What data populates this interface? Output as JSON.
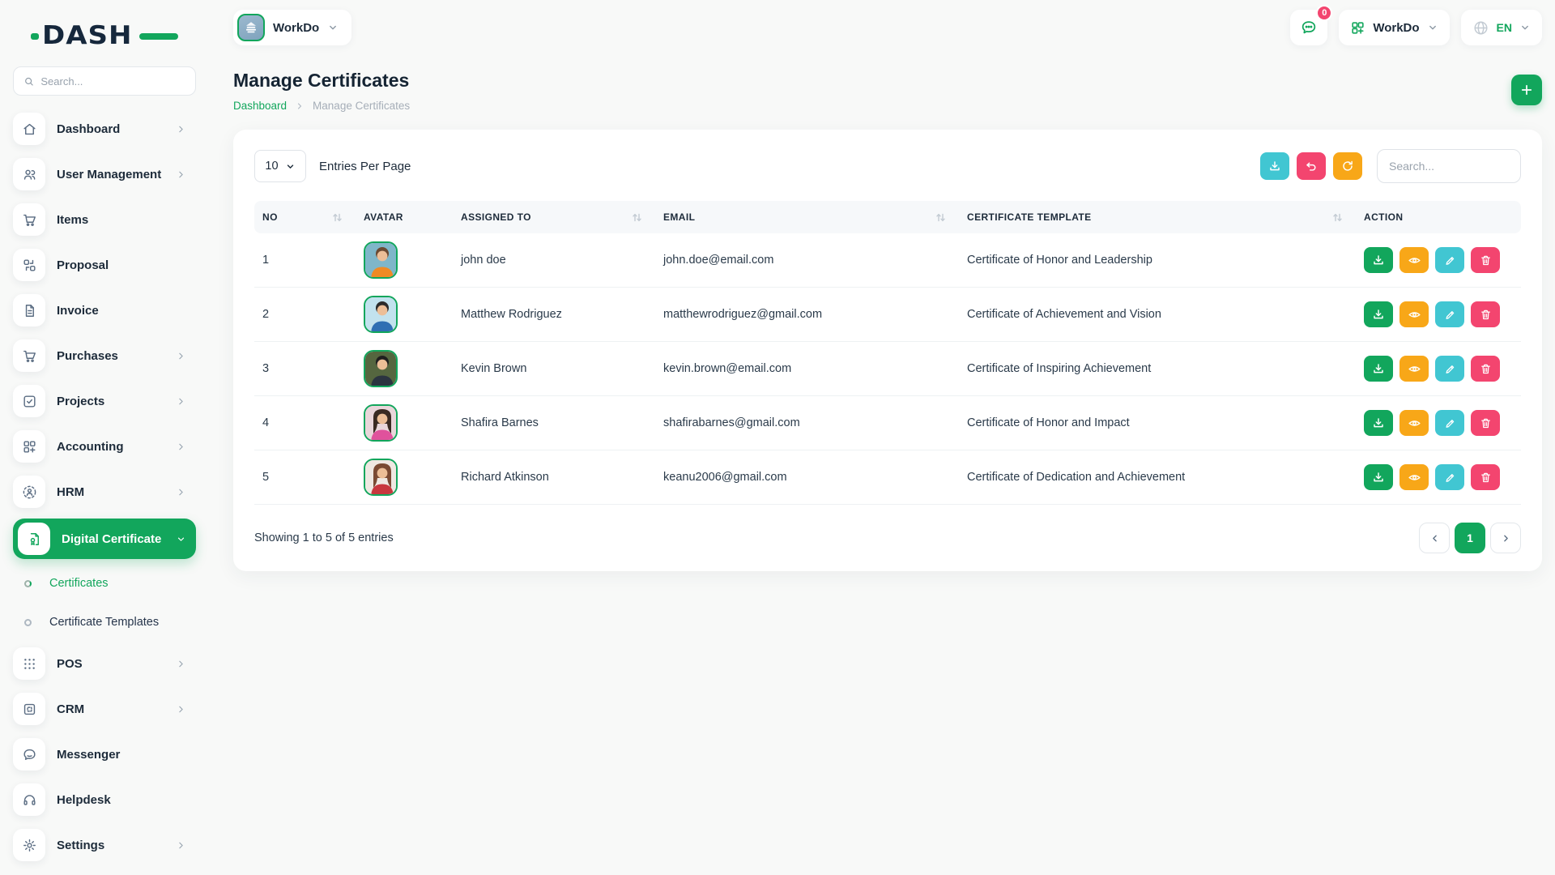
{
  "brand": {
    "logo_text": "DASH"
  },
  "colors": {
    "primary_green": "#12A65C",
    "teal": "#41C6D2",
    "pink": "#F3456F",
    "orange": "#F8A718",
    "badge_red": "#F3456F",
    "dark_text": "#1D2B3A"
  },
  "sidebar": {
    "search_placeholder": "Search...",
    "items": [
      {
        "type": "item",
        "label": "Dashboard",
        "icon": "home",
        "chevron": "right",
        "active": false
      },
      {
        "type": "item",
        "label": "User Management",
        "icon": "users",
        "chevron": "right",
        "active": false
      },
      {
        "type": "item",
        "label": "Items",
        "icon": "cart",
        "chevron": null,
        "active": false
      },
      {
        "type": "item",
        "label": "Proposal",
        "icon": "swap",
        "chevron": null,
        "active": false
      },
      {
        "type": "item",
        "label": "Invoice",
        "icon": "file",
        "chevron": null,
        "active": false
      },
      {
        "type": "item",
        "label": "Purchases",
        "icon": "cart",
        "chevron": "right",
        "active": false
      },
      {
        "type": "item",
        "label": "Projects",
        "icon": "check-square",
        "chevron": "right",
        "active": false
      },
      {
        "type": "item",
        "label": "Accounting",
        "icon": "grid-plus",
        "chevron": "right",
        "active": false
      },
      {
        "type": "item",
        "label": "HRM",
        "icon": "person-dashed",
        "chevron": "right",
        "active": false
      },
      {
        "type": "item",
        "label": "Digital Certificate",
        "icon": "certificate",
        "chevron": "down",
        "active": true
      },
      {
        "type": "sub",
        "label": "Certificates",
        "active": true
      },
      {
        "type": "sub",
        "label": "Certificate Templates",
        "active": false
      },
      {
        "type": "item",
        "label": "POS",
        "icon": "dots-grid",
        "chevron": "right",
        "active": false
      },
      {
        "type": "item",
        "label": "CRM",
        "icon": "window",
        "chevron": "right",
        "active": false
      },
      {
        "type": "item",
        "label": "Messenger",
        "icon": "chat",
        "chevron": null,
        "active": false
      },
      {
        "type": "item",
        "label": "Helpdesk",
        "icon": "headset",
        "chevron": null,
        "active": false
      },
      {
        "type": "item",
        "label": "Settings",
        "icon": "gear",
        "chevron": "right",
        "active": false
      }
    ]
  },
  "header": {
    "company_name": "WorkDo",
    "notification_count": "0",
    "workspace_name": "WorkDo",
    "language": "EN"
  },
  "page": {
    "title": "Manage Certificates",
    "breadcrumb_home": "Dashboard",
    "breadcrumb_current": "Manage Certificates"
  },
  "toolbar": {
    "entries_value": "10",
    "entries_label": "Entries Per Page",
    "search_placeholder": "Search...",
    "buttons": [
      {
        "name": "export",
        "icon": "download",
        "color": "#41C6D2"
      },
      {
        "name": "undo",
        "icon": "undo",
        "color": "#F3456F"
      },
      {
        "name": "refresh",
        "icon": "refresh",
        "color": "#F8A718"
      }
    ]
  },
  "table": {
    "columns": [
      {
        "label": "NO",
        "sortable": true
      },
      {
        "label": "AVATAR",
        "sortable": false
      },
      {
        "label": "ASSIGNED TO",
        "sortable": true
      },
      {
        "label": "EMAIL",
        "sortable": true
      },
      {
        "label": "CERTIFICATE TEMPLATE",
        "sortable": true
      },
      {
        "label": "ACTION",
        "sortable": false
      }
    ],
    "row_actions": [
      {
        "name": "download",
        "icon": "download",
        "color": "#12A65C"
      },
      {
        "name": "view",
        "icon": "eye",
        "color": "#F8A718"
      },
      {
        "name": "edit",
        "icon": "pencil",
        "color": "#41C6D2"
      },
      {
        "name": "delete",
        "icon": "trash",
        "color": "#F3456F"
      }
    ],
    "rows": [
      {
        "no": "1",
        "name": "john doe",
        "email": "john.doe@email.com",
        "template": "Certificate of Honor and Leadership",
        "avatar": {
          "bg": "#7fb6c9",
          "shirt": "#f08a24",
          "hair": "#6b4a33",
          "long_hair": false
        }
      },
      {
        "no": "2",
        "name": "Matthew Rodriguez",
        "email": "matthewrodriguez@gmail.com",
        "template": "Certificate of Achievement and Vision",
        "avatar": {
          "bg": "#c2e2ee",
          "shirt": "#2f6fb3",
          "hair": "#2b2b2b",
          "long_hair": false
        }
      },
      {
        "no": "3",
        "name": "Kevin Brown",
        "email": "kevin.brown@email.com",
        "template": "Certificate of Inspiring Achievement",
        "avatar": {
          "bg": "#55663f",
          "shirt": "#2b3440",
          "hair": "#1f1f1f",
          "long_hair": false
        }
      },
      {
        "no": "4",
        "name": "Shafira Barnes",
        "email": "shafirabarnes@gmail.com",
        "template": "Certificate of Honor and Impact",
        "avatar": {
          "bg": "#e9d6da",
          "shirt": "#e0529c",
          "hair": "#3a2a22",
          "long_hair": true
        }
      },
      {
        "no": "5",
        "name": "Richard Atkinson",
        "email": "keanu2006@gmail.com",
        "template": "Certificate of Dedication and Achievement",
        "avatar": {
          "bg": "#efe8e2",
          "shirt": "#c8373e",
          "hair": "#7a4a33",
          "long_hair": true
        }
      }
    ]
  },
  "footer": {
    "showing_text": "Showing 1 to 5 of 5 entries",
    "current_page": "1"
  }
}
